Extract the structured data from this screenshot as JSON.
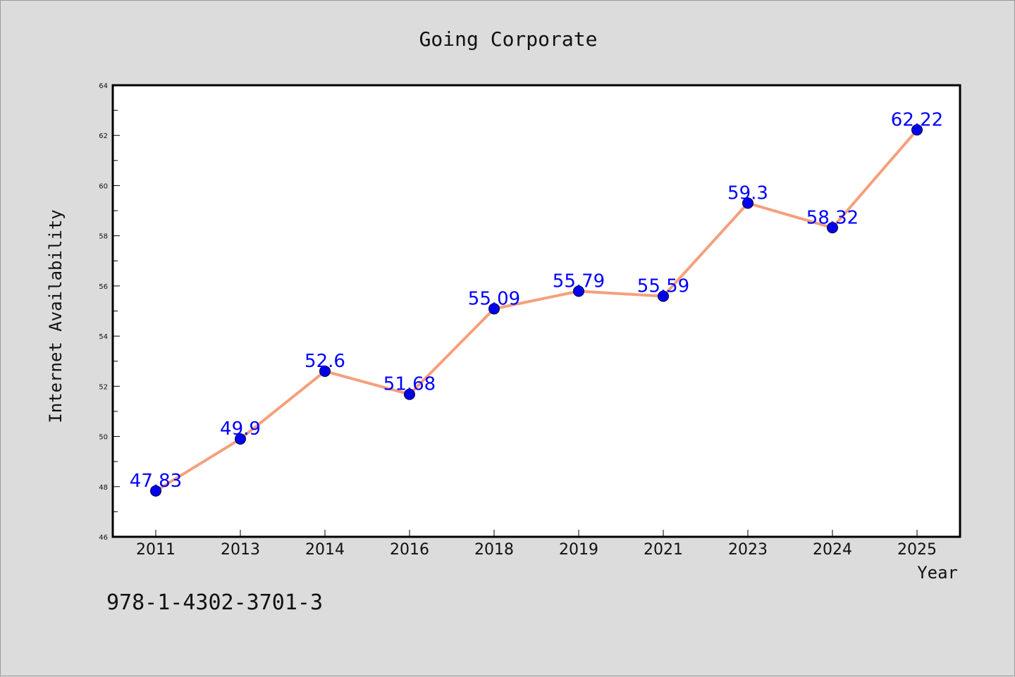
{
  "chart_data": {
    "type": "line",
    "title": "Going Corporate",
    "xlabel": "Year",
    "ylabel": "Internet Availability",
    "categories": [
      "2011",
      "2013",
      "2014",
      "2016",
      "2018",
      "2019",
      "2021",
      "2023",
      "2024",
      "2025"
    ],
    "series": [
      {
        "values": [
          47.83,
          49.9,
          52.6,
          51.68,
          55.09,
          55.79,
          55.59,
          59.3,
          58.32,
          62.22
        ],
        "point_labels": [
          "47.83",
          "49.9",
          "52.6",
          "51.68",
          "55.09",
          "55.79",
          "55.59",
          "59.3",
          "58.32",
          "62.22"
        ],
        "line_color": "#f4a07c",
        "marker_color": "#0000ee",
        "label_color": "#0000ff"
      }
    ],
    "ylim": [
      46,
      64
    ],
    "yticks": [
      "46",
      "48",
      "50",
      "52",
      "54",
      "56",
      "58",
      "60",
      "62",
      "64"
    ],
    "grid": false,
    "legend": false
  },
  "annotation": "978-1-4302-3701-3"
}
